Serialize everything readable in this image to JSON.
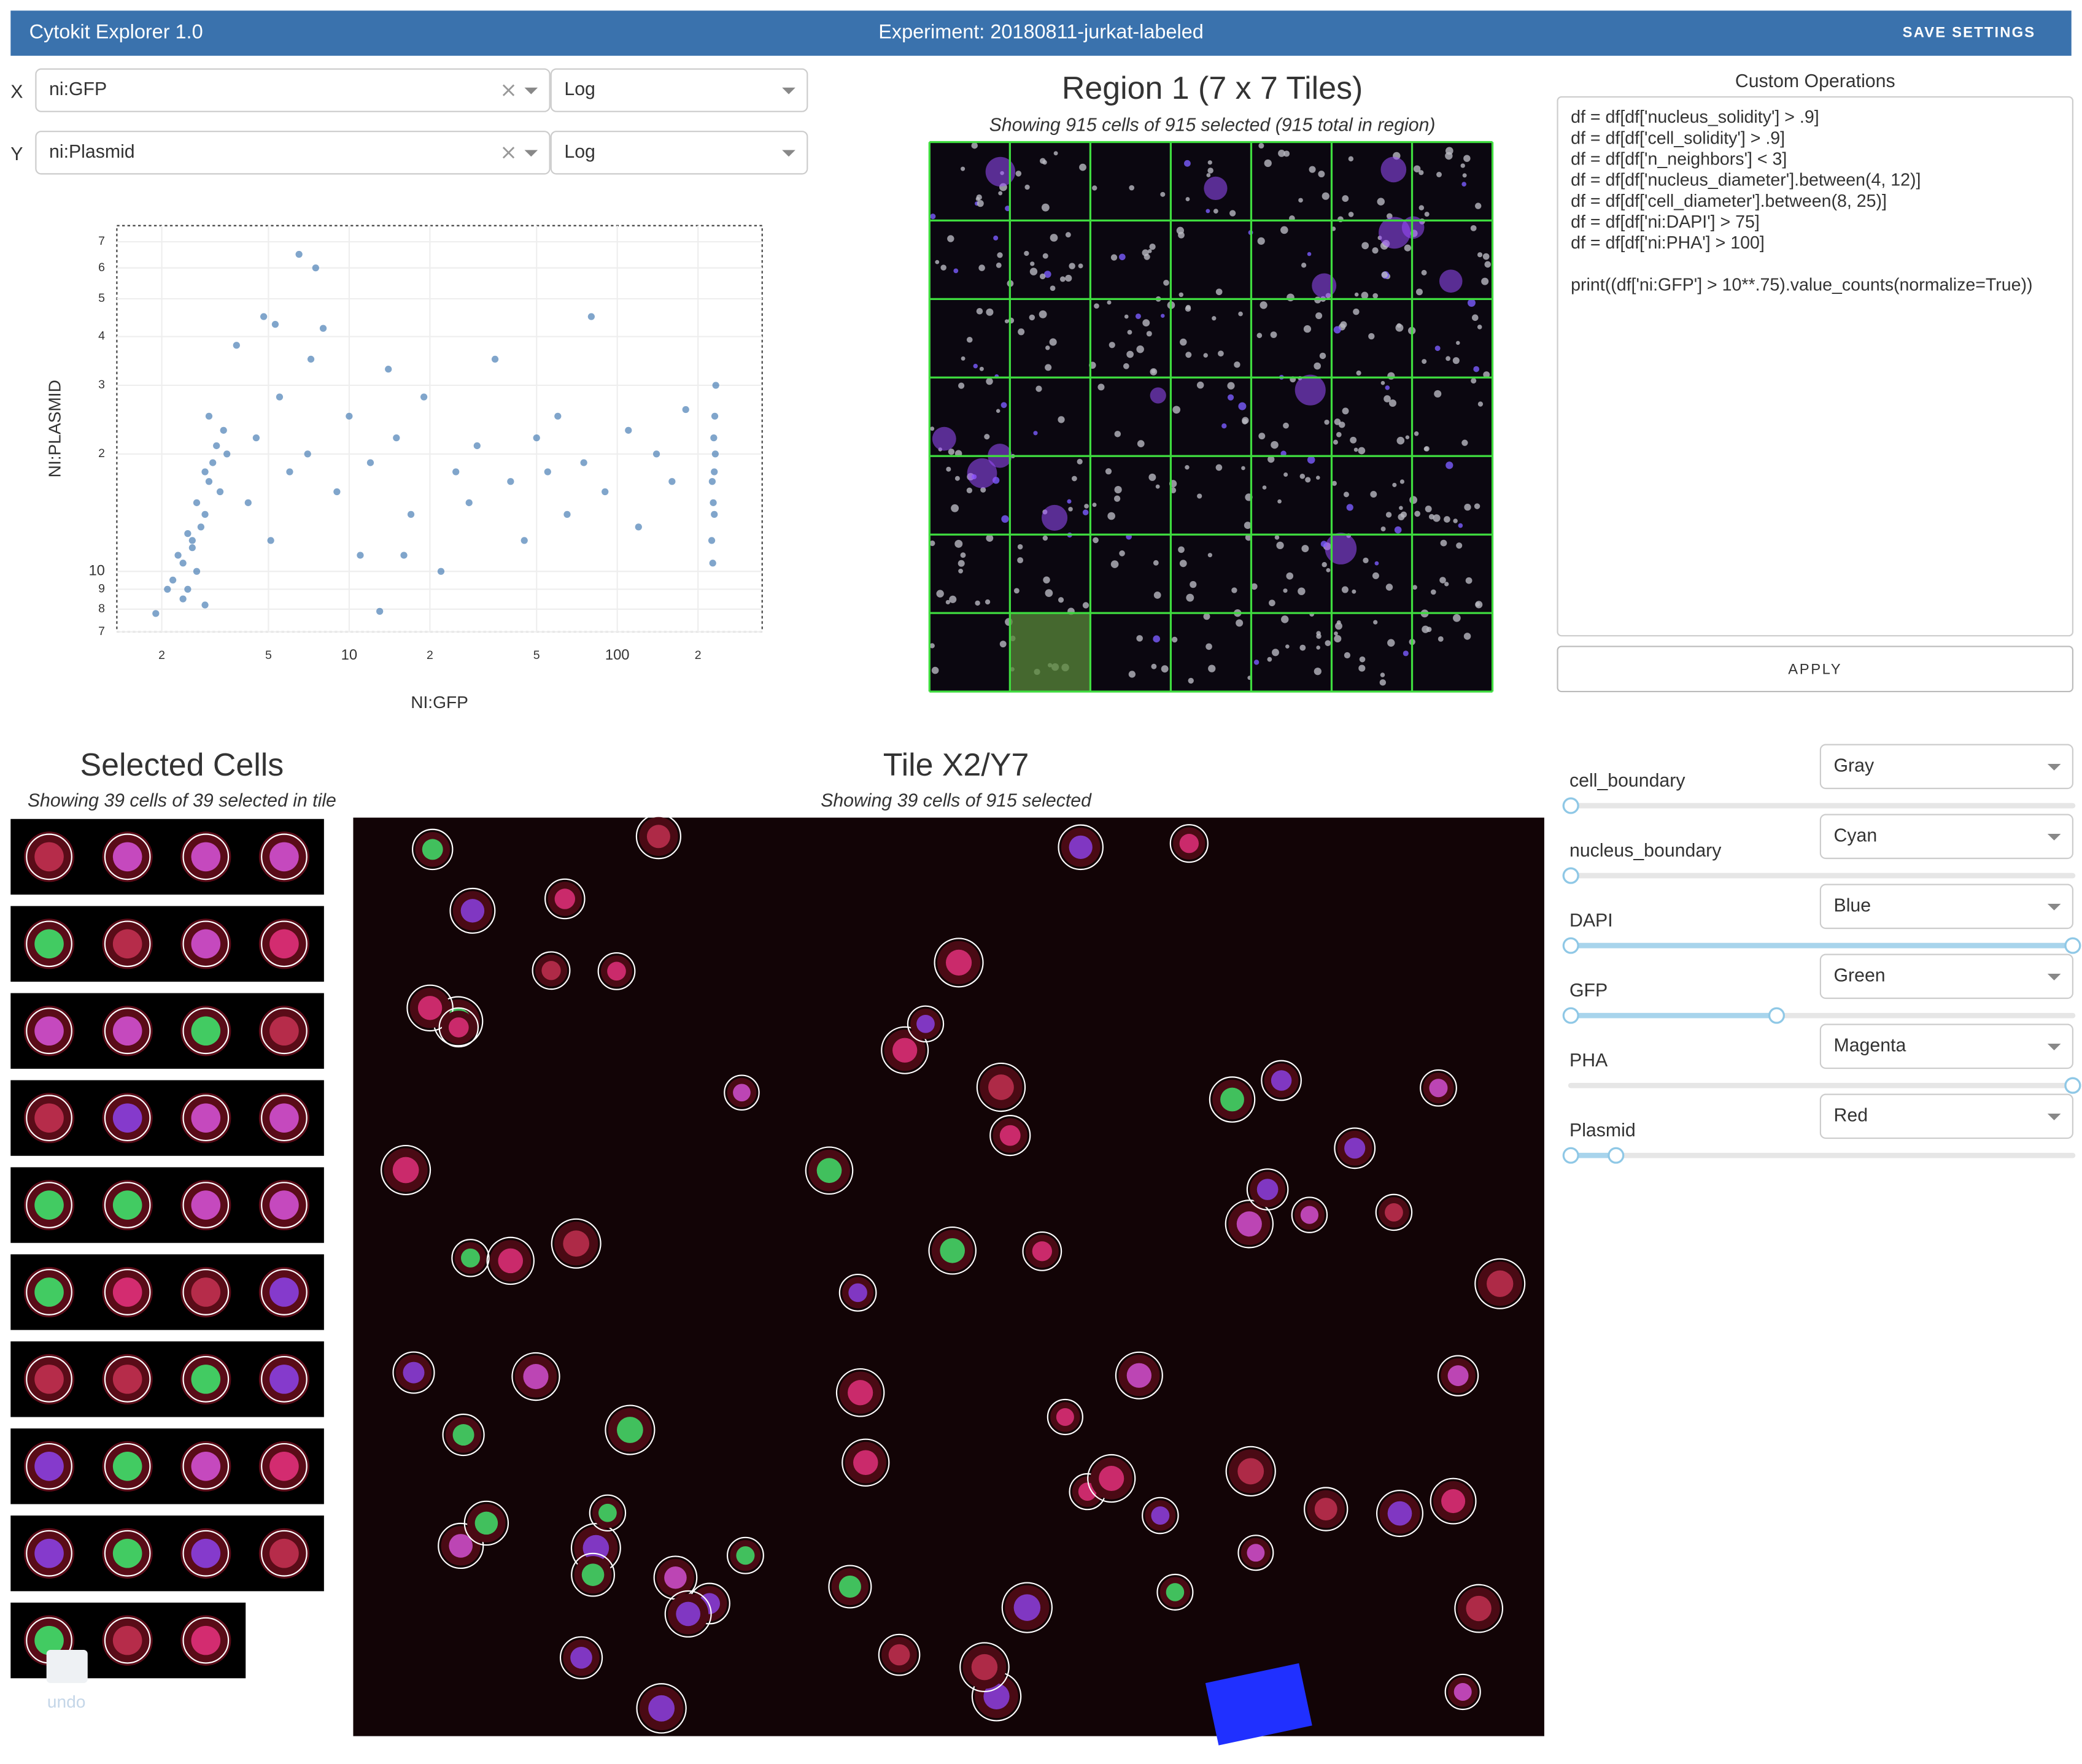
{
  "header": {
    "title": "Cytokit Explorer 1.0",
    "experiment": "Experiment: 20180811-jurkat-labeled",
    "save_button": "SAVE SETTINGS"
  },
  "axis_controls": [
    {
      "axis": "X",
      "feature": "ni:GFP",
      "scale": "Log"
    },
    {
      "axis": "Y",
      "feature": "ni:Plasmid",
      "scale": "Log"
    }
  ],
  "chart_data": {
    "type": "scatter",
    "x_label": "NI:GFP",
    "y_label": "NI:PLASMID",
    "xscale": "log",
    "yscale": "log",
    "xlim": [
      1.36,
      347
    ],
    "ylim": [
      7,
      77
    ],
    "xticks": [
      2,
      5,
      10,
      {
        "value": 20,
        "label": "2"
      },
      {
        "value": 50,
        "label": "5"
      },
      100,
      {
        "value": 200,
        "label": "2"
      }
    ],
    "yticks": [
      7,
      8,
      9,
      10,
      {
        "value": 20,
        "label": "2"
      },
      {
        "value": 30,
        "label": "3"
      },
      {
        "value": 40,
        "label": "4"
      },
      {
        "value": 50,
        "label": "5"
      },
      {
        "value": 60,
        "label": "6"
      },
      {
        "value": 70,
        "label": "7"
      }
    ],
    "grid": true,
    "color": "#4a7fb5",
    "x": [
      2.2,
      2.4,
      2.3,
      2.6,
      2.5,
      2.8,
      2.7,
      3.0,
      2.9,
      3.1,
      3.2,
      2.6,
      2.4,
      2.1,
      1.9,
      2.9,
      3.3,
      3.4,
      3.0,
      3.5,
      2.7,
      2.5,
      4.2,
      4.5,
      5.1,
      5.5,
      6,
      6.5,
      7,
      7.5,
      8,
      9,
      10,
      11,
      12,
      14,
      15,
      17,
      19,
      22,
      25,
      28,
      30,
      35,
      40,
      45,
      50,
      55,
      60,
      65,
      75,
      80,
      90,
      110,
      120,
      140,
      160,
      180,
      4.8,
      3.8,
      5.3,
      2.9,
      7.2,
      13,
      16,
      225,
      228,
      230,
      232,
      229,
      231,
      226,
      233,
      227,
      230
    ],
    "values": [
      9.5,
      10.5,
      11,
      12,
      9,
      13,
      15,
      17,
      14,
      19,
      21,
      11.5,
      8.5,
      9,
      7.8,
      18,
      16,
      23,
      25,
      20,
      10,
      12.5,
      15,
      22,
      12,
      28,
      18,
      65,
      20,
      60,
      42,
      16,
      25,
      11,
      19,
      33,
      22,
      14,
      28,
      10,
      18,
      15,
      21,
      35,
      17,
      12,
      22,
      18,
      25,
      14,
      19,
      45,
      16,
      23,
      13,
      20,
      17,
      26,
      45,
      38,
      43,
      8.2,
      35,
      7.9,
      11,
      12,
      15,
      18,
      20,
      22,
      25,
      17,
      30,
      10.5,
      14
    ]
  },
  "region": {
    "title": "Region 1 (7 x 7 Tiles)",
    "subtitle": "Showing 915 cells of 915 selected (915 total in region)"
  },
  "custom_operations": {
    "label": "Custom Operations",
    "filters": [
      "df = df[df['nucleus_solidity'] > .9]",
      "df = df[df['cell_solidity'] > .9]",
      "df = df[df['n_neighbors'] < 3]",
      "df = df[df['nucleus_diameter'].between(4, 12)]",
      "df = df[df['cell_diameter'].between(8, 25)]",
      "df = df[df['ni:DAPI'] > 75]",
      "df = df[df['ni:PHA'] > 100]"
    ],
    "print": "print((df['ni:GFP'] > 10**.75).value_counts(normalize=True))",
    "apply_button": "APPLY"
  },
  "selected_cells": {
    "title": "Selected Cells",
    "subtitle": "Showing 39 cells of 39 selected in tile",
    "undo": "undo"
  },
  "tile": {
    "title": "Tile X2/Y7",
    "subtitle": "Showing 39 cells of 915 selected"
  },
  "channels": [
    {
      "name": "cell_boundary",
      "color": "Gray",
      "range": [
        0,
        0
      ]
    },
    {
      "name": "nucleus_boundary",
      "color": "Cyan",
      "range": [
        0,
        0
      ]
    },
    {
      "name": "DAPI",
      "color": "Blue",
      "range": [
        0,
        1
      ]
    },
    {
      "name": "GFP",
      "color": "Green",
      "range": [
        0,
        0.41
      ]
    },
    {
      "name": "PHA",
      "color": "Magenta",
      "range": [
        1,
        1
      ]
    },
    {
      "name": "Plasmid",
      "color": "Red",
      "range": [
        0,
        0.09
      ]
    }
  ]
}
